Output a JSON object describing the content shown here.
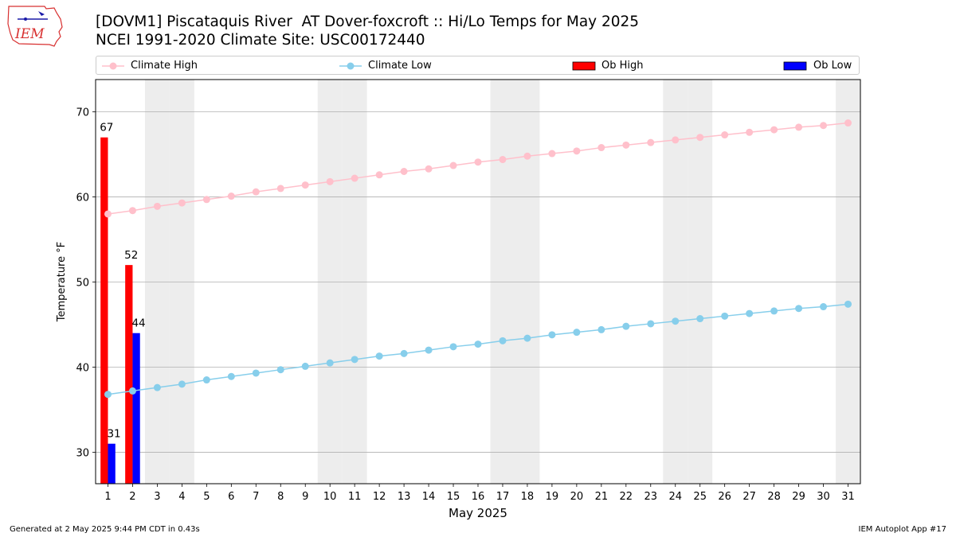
{
  "header": {
    "title_line1": "[DOVM1] Piscataquis River  AT Dover-foxcroft :: Hi/Lo Temps for May 2025",
    "title_line2": "NCEI 1991-2020 Climate Site: USC00172440",
    "logo_text": "IEM"
  },
  "footer": {
    "generated": "Generated at 2 May 2025 9:44 PM CDT in 0.43s",
    "app": "IEM Autoplot App #17"
  },
  "legend": {
    "climate_high": "Climate High",
    "climate_low": "Climate Low",
    "ob_high": "Ob High",
    "ob_low": "Ob Low"
  },
  "colors": {
    "climate_high": "#ffc0cb",
    "climate_low": "#87ceeb",
    "ob_high": "#ff0000",
    "ob_low": "#0000ff",
    "weekend_shade": "#ededed",
    "grid": "#b0b0b0"
  },
  "chart_data": {
    "type": "bar",
    "xlabel": "May 2025",
    "ylabel": "Temperature °F",
    "xlim": [
      0.5,
      31.5
    ],
    "ylim": [
      26.3,
      73.8
    ],
    "yticks": [
      30,
      40,
      50,
      60,
      70
    ],
    "days": [
      1,
      2,
      3,
      4,
      5,
      6,
      7,
      8,
      9,
      10,
      11,
      12,
      13,
      14,
      15,
      16,
      17,
      18,
      19,
      20,
      21,
      22,
      23,
      24,
      25,
      26,
      27,
      28,
      29,
      30,
      31
    ],
    "weekend_days": [
      3,
      4,
      10,
      11,
      17,
      18,
      24,
      25,
      31
    ],
    "grid": "horizontal",
    "legend_position": "top",
    "series": [
      {
        "name": "Climate High",
        "kind": "line",
        "values": [
          58.0,
          58.4,
          58.9,
          59.3,
          59.7,
          60.1,
          60.6,
          61.0,
          61.4,
          61.8,
          62.2,
          62.6,
          63.0,
          63.3,
          63.7,
          64.1,
          64.4,
          64.8,
          65.1,
          65.4,
          65.8,
          66.1,
          66.4,
          66.7,
          67.0,
          67.3,
          67.6,
          67.9,
          68.2,
          68.4,
          68.7
        ]
      },
      {
        "name": "Climate Low",
        "kind": "line",
        "values": [
          36.8,
          37.2,
          37.6,
          38.0,
          38.5,
          38.9,
          39.3,
          39.7,
          40.1,
          40.5,
          40.9,
          41.3,
          41.6,
          42.0,
          42.4,
          42.7,
          43.1,
          43.4,
          43.8,
          44.1,
          44.4,
          44.8,
          45.1,
          45.4,
          45.7,
          46.0,
          46.3,
          46.6,
          46.9,
          47.1,
          47.4
        ]
      },
      {
        "name": "Ob High",
        "kind": "bar",
        "days": [
          1,
          2
        ],
        "values": [
          67,
          52
        ],
        "labels": [
          "67",
          "52"
        ]
      },
      {
        "name": "Ob Low",
        "kind": "bar",
        "days": [
          1,
          2
        ],
        "values": [
          31,
          44
        ],
        "labels": [
          "31",
          "44"
        ]
      }
    ]
  }
}
